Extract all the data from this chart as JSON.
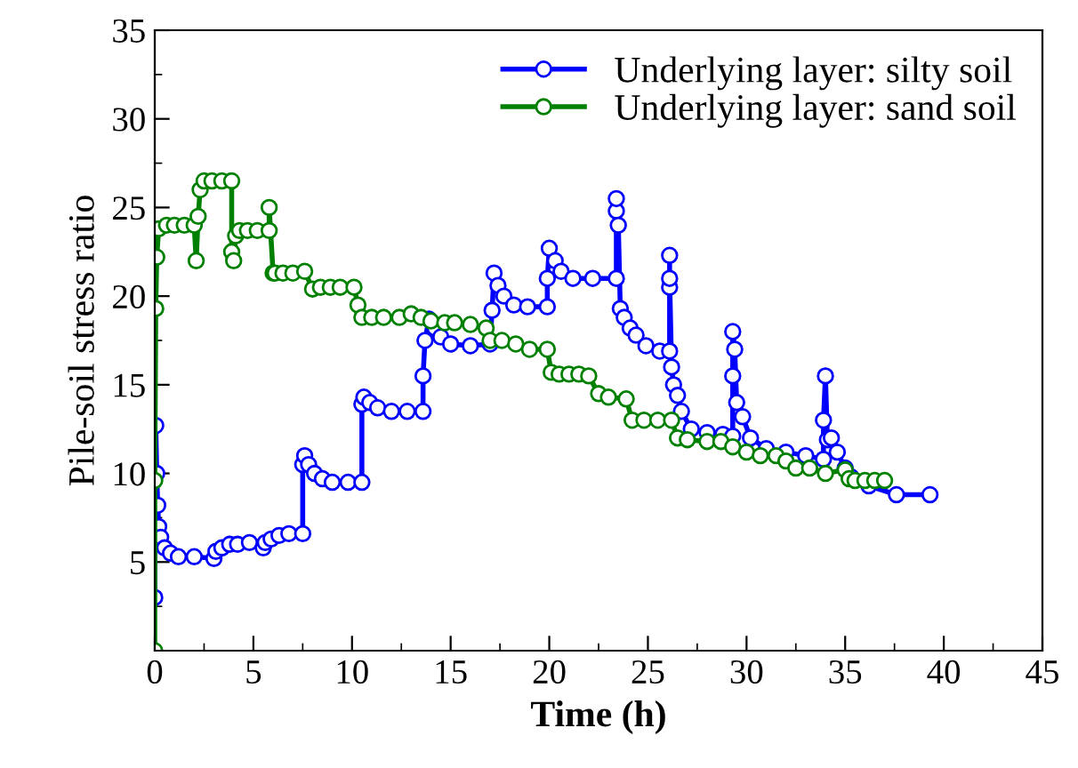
{
  "chart_data": {
    "type": "line",
    "xlabel": "Time (h)",
    "ylabel": "Pile-soil stress ratio",
    "xlim": [
      0,
      45
    ],
    "ylim": [
      0,
      35
    ],
    "xticks": [
      0,
      5,
      10,
      15,
      20,
      25,
      30,
      35,
      40,
      45
    ],
    "yticks": [
      5,
      10,
      15,
      20,
      25,
      30,
      35
    ],
    "grid": false,
    "legend": "top right",
    "marker": "circle",
    "line_style": "solid",
    "series": [
      {
        "name": "Underlying layer: silty soil",
        "color": "#0000ff",
        "x": [
          0,
          0,
          0.05,
          0.1,
          0.15,
          0.2,
          0.3,
          0.5,
          0.8,
          1.2,
          2,
          3,
          3.1,
          3.4,
          3.8,
          4.2,
          4.8,
          5.5,
          5.6,
          5.9,
          6.3,
          6.8,
          7.5,
          7.5,
          7.6,
          7.8,
          8.1,
          8.5,
          9,
          9.8,
          10.5,
          10.5,
          10.6,
          10.9,
          11.3,
          12,
          12.8,
          13.6,
          13.6,
          13.7,
          13.9,
          14.2,
          14.5,
          15,
          16,
          17,
          17.1,
          17.2,
          17.4,
          17.7,
          18.2,
          18.9,
          19.9,
          19.9,
          20,
          20.3,
          20.6,
          21.2,
          22.2,
          23.4,
          23.4,
          23.4,
          23.5,
          23.6,
          23.8,
          24.1,
          24.4,
          24.9,
          25.6,
          26.1,
          26.1,
          26.1,
          26.1,
          26.2,
          26.3,
          26.5,
          26.7,
          27.2,
          28,
          28.8,
          29.3,
          29.3,
          29.3,
          29.4,
          29.5,
          29.8,
          30.2,
          31,
          32,
          33,
          33.9,
          33.9,
          34,
          34.1,
          34.3,
          34.6,
          35,
          35.3,
          36.2,
          37.6,
          39.3
        ],
        "values": [
          3.0,
          6.8,
          12.7,
          10.0,
          8.2,
          7.0,
          6.4,
          5.8,
          5.5,
          5.3,
          5.3,
          5.2,
          5.6,
          5.8,
          6.0,
          6.0,
          6.1,
          5.8,
          6.1,
          6.3,
          6.5,
          6.6,
          6.6,
          10.5,
          11.0,
          10.5,
          10.0,
          9.7,
          9.5,
          9.5,
          9.5,
          13.9,
          14.3,
          14.0,
          13.7,
          13.5,
          13.5,
          13.5,
          15.5,
          17.5,
          18.7,
          18.2,
          17.7,
          17.3,
          17.2,
          17.3,
          19.2,
          21.3,
          20.6,
          20.0,
          19.5,
          19.4,
          19.4,
          21.0,
          22.7,
          22.0,
          21.4,
          21.0,
          21.0,
          21.0,
          24.8,
          25.5,
          24.0,
          19.3,
          18.8,
          18.2,
          17.8,
          17.2,
          16.9,
          16.9,
          20.5,
          22.3,
          21.0,
          16.0,
          15.0,
          14.4,
          13.5,
          12.5,
          12.3,
          12.2,
          12.1,
          15.5,
          18.0,
          17.0,
          14.0,
          13.2,
          12.0,
          11.4,
          11.2,
          11.0,
          10.8,
          13.0,
          15.5,
          11.9,
          12.0,
          11.2,
          10.3,
          9.8,
          9.3,
          8.8,
          8.8
        ]
      },
      {
        "name": "Underlying layer: sand soil",
        "color": "#008000",
        "x": [
          0,
          0,
          0.05,
          0.1,
          0.2,
          0.6,
          1.0,
          1.5,
          2.0,
          2.1,
          2.2,
          2.3,
          2.5,
          2.9,
          3.4,
          3.9,
          3.9,
          4.0,
          4.1,
          4.3,
          4.7,
          5.2,
          5.8,
          5.8,
          6.0,
          6.1,
          6.5,
          7.0,
          7.6,
          8.0,
          8.4,
          8.9,
          9.4,
          10.1,
          10.3,
          10.5,
          11,
          11.6,
          12.4,
          13.0,
          13.5,
          14,
          14.7,
          15.2,
          16,
          16.8,
          17,
          17.6,
          18.3,
          19,
          19.9,
          20.1,
          20.5,
          21,
          21.5,
          22,
          22.5,
          23,
          23.9,
          24.2,
          24.8,
          25.5,
          26.2,
          26.5,
          27,
          28,
          28.7,
          29.3,
          30.0,
          30.7,
          31.5,
          32.0,
          32.5,
          33.2,
          34.0,
          35.0,
          35.2,
          35.5,
          36,
          36.5,
          37
        ],
        "values": [
          0,
          9.6,
          19.3,
          22.2,
          23.8,
          24.0,
          24.0,
          24.0,
          24.0,
          22.0,
          24.5,
          26.0,
          26.5,
          26.5,
          26.5,
          26.5,
          22.5,
          22.0,
          23.4,
          23.7,
          23.7,
          23.7,
          23.7,
          25.0,
          21.3,
          21.3,
          21.3,
          21.3,
          21.4,
          20.4,
          20.5,
          20.5,
          20.5,
          20.5,
          19.5,
          18.8,
          18.8,
          18.8,
          18.8,
          19.0,
          18.8,
          18.6,
          18.5,
          18.5,
          18.4,
          18.2,
          17.5,
          17.5,
          17.3,
          17.0,
          17.0,
          15.7,
          15.6,
          15.6,
          15.6,
          15.5,
          14.5,
          14.3,
          14.2,
          13.0,
          13.0,
          13.0,
          13.0,
          12.0,
          11.9,
          11.8,
          11.8,
          11.5,
          11.2,
          11.0,
          11.0,
          10.7,
          10.3,
          10.3,
          10.0,
          10.2,
          9.7,
          9.6,
          9.6,
          9.6,
          9.6
        ]
      }
    ]
  }
}
